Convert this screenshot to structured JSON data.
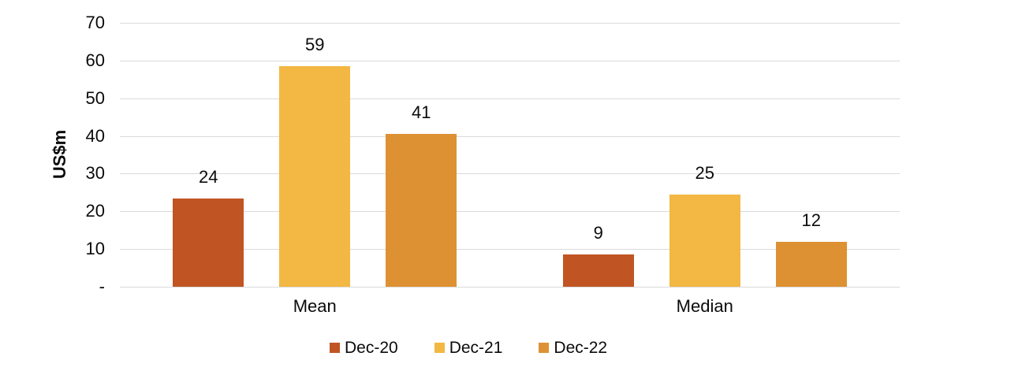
{
  "chart_data": {
    "type": "bar",
    "title": "",
    "xlabel": "",
    "ylabel": "US$m",
    "ylim": [
      0,
      70
    ],
    "grid": "horizontal",
    "gridline_color": "#dbdbdb",
    "text_color": "#0b0b0b",
    "legend_position": "bottom",
    "categories": [
      "Mean",
      "Median"
    ],
    "series": [
      {
        "name": "Dec-20",
        "color": "#c05523",
        "values": [
          24,
          9
        ],
        "labels": [
          "24",
          "9"
        ],
        "bar_heights_estimated": [
          23.5,
          8.5
        ]
      },
      {
        "name": "Dec-21",
        "color": "#f2b843",
        "values": [
          59,
          25
        ],
        "labels": [
          "59",
          "25"
        ],
        "bar_heights_estimated": [
          58.5,
          24.5
        ]
      },
      {
        "name": "Dec-22",
        "color": "#de9132",
        "values": [
          41,
          12
        ],
        "labels": [
          "41",
          "12"
        ],
        "bar_heights_estimated": [
          40.5,
          12
        ]
      }
    ],
    "y_ticks": [
      {
        "label": "70",
        "value": 70
      },
      {
        "label": "60",
        "value": 60
      },
      {
        "label": "50",
        "value": 50
      },
      {
        "label": "40",
        "value": 40
      },
      {
        "label": "30",
        "value": 30
      },
      {
        "label": "20",
        "value": 20
      },
      {
        "label": "10",
        "value": 10
      },
      {
        "label": "-",
        "value": 0
      }
    ]
  }
}
